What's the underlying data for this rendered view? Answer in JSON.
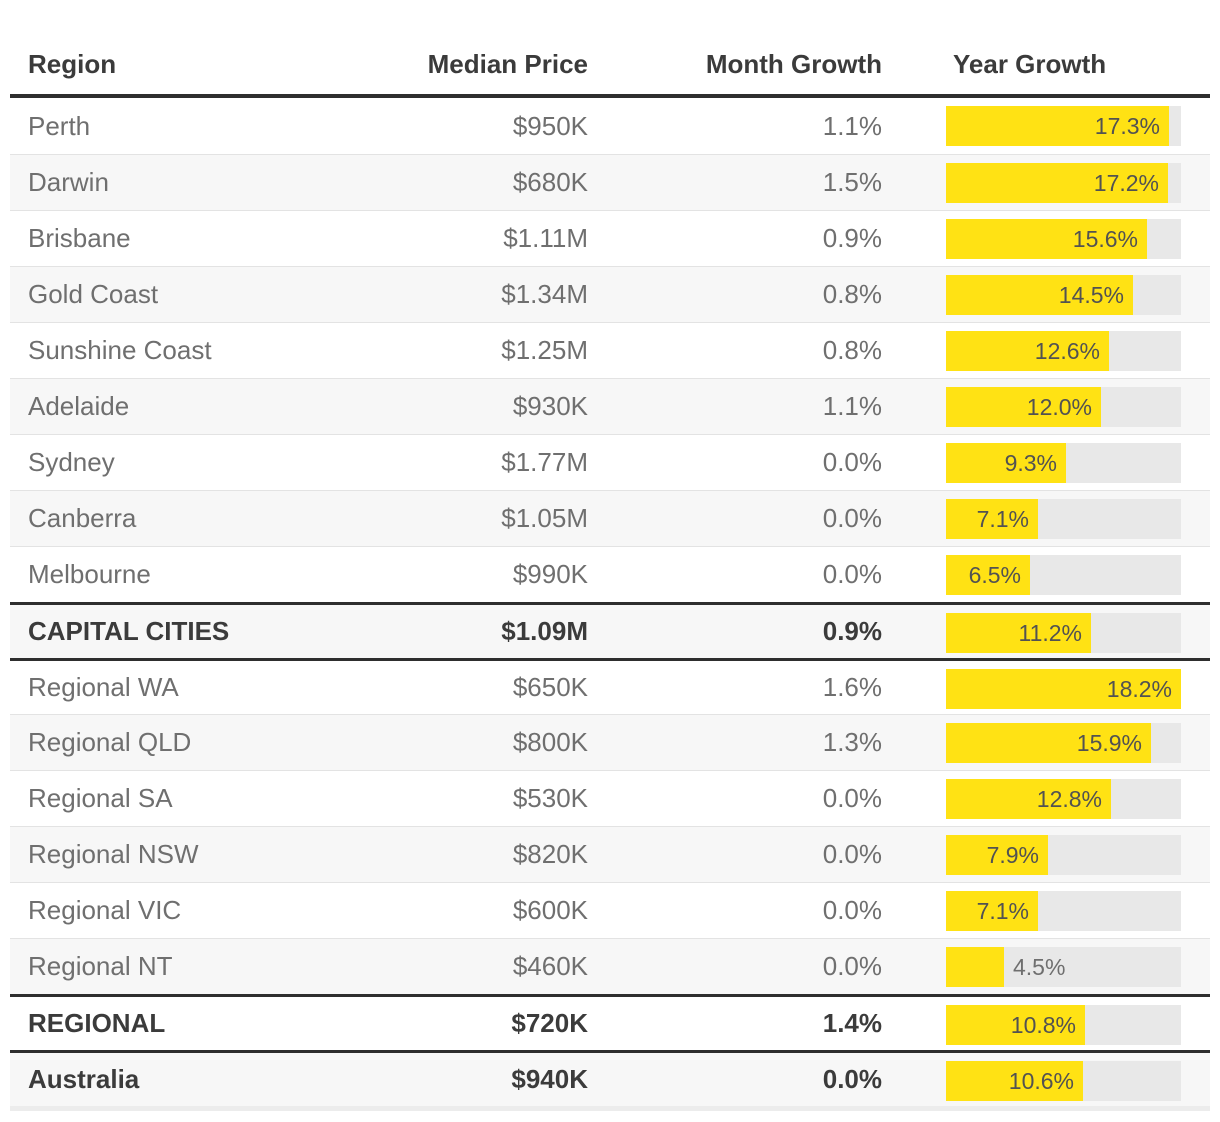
{
  "colors": {
    "bar_fill": "#FFE214",
    "bar_track": "#E8E8E8",
    "row_alt_background": "#F7F7F7",
    "rule_dark": "#2E2E2E",
    "text_dark": "#3B3B3B",
    "text_body": "#6F6F6F"
  },
  "chart_data": {
    "type": "table",
    "columns": [
      "Region",
      "Median Price",
      "Month Growth",
      "Year Growth"
    ],
    "bar_column": "Year Growth",
    "bar_axis_max": 18.2,
    "bar_color": "#FFE214",
    "rows": [
      {
        "region": "Perth",
        "median_price": "$950K",
        "month_growth": "1.1%",
        "year_growth_pct": 17.3,
        "year_growth_label": "17.3%",
        "row_style": "normal"
      },
      {
        "region": "Darwin",
        "median_price": "$680K",
        "month_growth": "1.5%",
        "year_growth_pct": 17.2,
        "year_growth_label": "17.2%",
        "row_style": "normal"
      },
      {
        "region": "Brisbane",
        "median_price": "$1.11M",
        "month_growth": "0.9%",
        "year_growth_pct": 15.6,
        "year_growth_label": "15.6%",
        "row_style": "normal"
      },
      {
        "region": "Gold Coast",
        "median_price": "$1.34M",
        "month_growth": "0.8%",
        "year_growth_pct": 14.5,
        "year_growth_label": "14.5%",
        "row_style": "normal"
      },
      {
        "region": "Sunshine Coast",
        "median_price": "$1.25M",
        "month_growth": "0.8%",
        "year_growth_pct": 12.6,
        "year_growth_label": "12.6%",
        "row_style": "normal"
      },
      {
        "region": "Adelaide",
        "median_price": "$930K",
        "month_growth": "1.1%",
        "year_growth_pct": 12.0,
        "year_growth_label": "12.0%",
        "row_style": "normal"
      },
      {
        "region": "Sydney",
        "median_price": "$1.77M",
        "month_growth": "0.0%",
        "year_growth_pct": 9.3,
        "year_growth_label": "9.3%",
        "row_style": "normal"
      },
      {
        "region": "Canberra",
        "median_price": "$1.05M",
        "month_growth": "0.0%",
        "year_growth_pct": 7.1,
        "year_growth_label": "7.1%",
        "row_style": "normal"
      },
      {
        "region": "Melbourne",
        "median_price": "$990K",
        "month_growth": "0.0%",
        "year_growth_pct": 6.5,
        "year_growth_label": "6.5%",
        "row_style": "normal"
      },
      {
        "region": "CAPITAL CITIES",
        "median_price": "$1.09M",
        "month_growth": "0.9%",
        "year_growth_pct": 11.2,
        "year_growth_label": "11.2%",
        "row_style": "summary"
      },
      {
        "region": "Regional WA",
        "median_price": "$650K",
        "month_growth": "1.6%",
        "year_growth_pct": 18.2,
        "year_growth_label": "18.2%",
        "row_style": "normal"
      },
      {
        "region": "Regional QLD",
        "median_price": "$800K",
        "month_growth": "1.3%",
        "year_growth_pct": 15.9,
        "year_growth_label": "15.9%",
        "row_style": "normal"
      },
      {
        "region": "Regional SA",
        "median_price": "$530K",
        "month_growth": "0.0%",
        "year_growth_pct": 12.8,
        "year_growth_label": "12.8%",
        "row_style": "normal"
      },
      {
        "region": "Regional NSW",
        "median_price": "$820K",
        "month_growth": "0.0%",
        "year_growth_pct": 7.9,
        "year_growth_label": "7.9%",
        "row_style": "normal"
      },
      {
        "region": "Regional VIC",
        "median_price": "$600K",
        "month_growth": "0.0%",
        "year_growth_pct": 7.1,
        "year_growth_label": "7.1%",
        "row_style": "normal"
      },
      {
        "region": "Regional NT",
        "median_price": "$460K",
        "month_growth": "0.0%",
        "year_growth_pct": 4.5,
        "year_growth_label": "4.5%",
        "row_style": "normal"
      },
      {
        "region": "REGIONAL",
        "median_price": "$720K",
        "month_growth": "1.4%",
        "year_growth_pct": 10.8,
        "year_growth_label": "10.8%",
        "row_style": "summary"
      },
      {
        "region": "Australia",
        "median_price": "$940K",
        "month_growth": "0.0%",
        "year_growth_pct": 10.6,
        "year_growth_label": "10.6%",
        "row_style": "summary"
      }
    ]
  }
}
